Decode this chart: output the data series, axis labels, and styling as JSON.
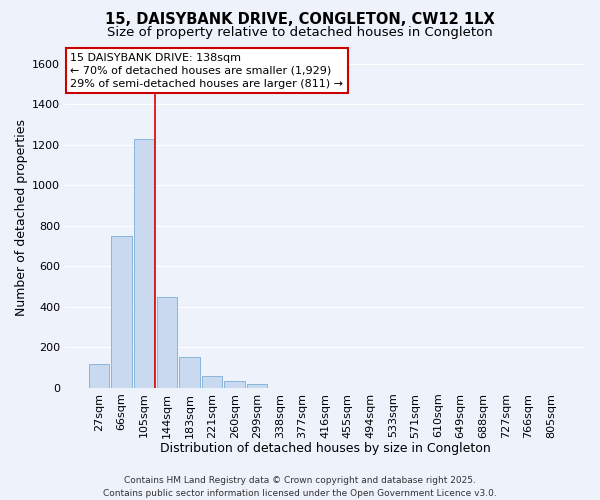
{
  "title_line1": "15, DAISYBANK DRIVE, CONGLETON, CW12 1LX",
  "title_line2": "Size of property relative to detached houses in Congleton",
  "xlabel": "Distribution of detached houses by size in Congleton",
  "ylabel": "Number of detached properties",
  "categories": [
    "27sqm",
    "66sqm",
    "105sqm",
    "144sqm",
    "183sqm",
    "221sqm",
    "260sqm",
    "299sqm",
    "338sqm",
    "377sqm",
    "416sqm",
    "455sqm",
    "494sqm",
    "533sqm",
    "571sqm",
    "610sqm",
    "649sqm",
    "688sqm",
    "727sqm",
    "766sqm",
    "805sqm"
  ],
  "values": [
    120,
    750,
    1230,
    450,
    150,
    58,
    35,
    18,
    0,
    0,
    0,
    0,
    0,
    0,
    0,
    0,
    0,
    0,
    0,
    0,
    0
  ],
  "bar_color": "#c8d9f0",
  "bar_edgecolor": "#7aadd4",
  "vline_color": "#dd0000",
  "annotation_text": "15 DAISYBANK DRIVE: 138sqm\n← 70% of detached houses are smaller (1,929)\n29% of semi-detached houses are larger (811) →",
  "annotation_box_color": "#ffffff",
  "annotation_box_edgecolor": "#cc0000",
  "ylim": [
    0,
    1680
  ],
  "yticks": [
    0,
    200,
    400,
    600,
    800,
    1000,
    1200,
    1400,
    1600
  ],
  "background_color": "#eef2fb",
  "grid_color": "#ffffff",
  "footer_line1": "Contains HM Land Registry data © Crown copyright and database right 2025.",
  "footer_line2": "Contains public sector information licensed under the Open Government Licence v3.0.",
  "title_fontsize": 10.5,
  "subtitle_fontsize": 9.5,
  "axis_label_fontsize": 9,
  "tick_fontsize": 8,
  "annotation_fontsize": 8,
  "footer_fontsize": 6.5
}
